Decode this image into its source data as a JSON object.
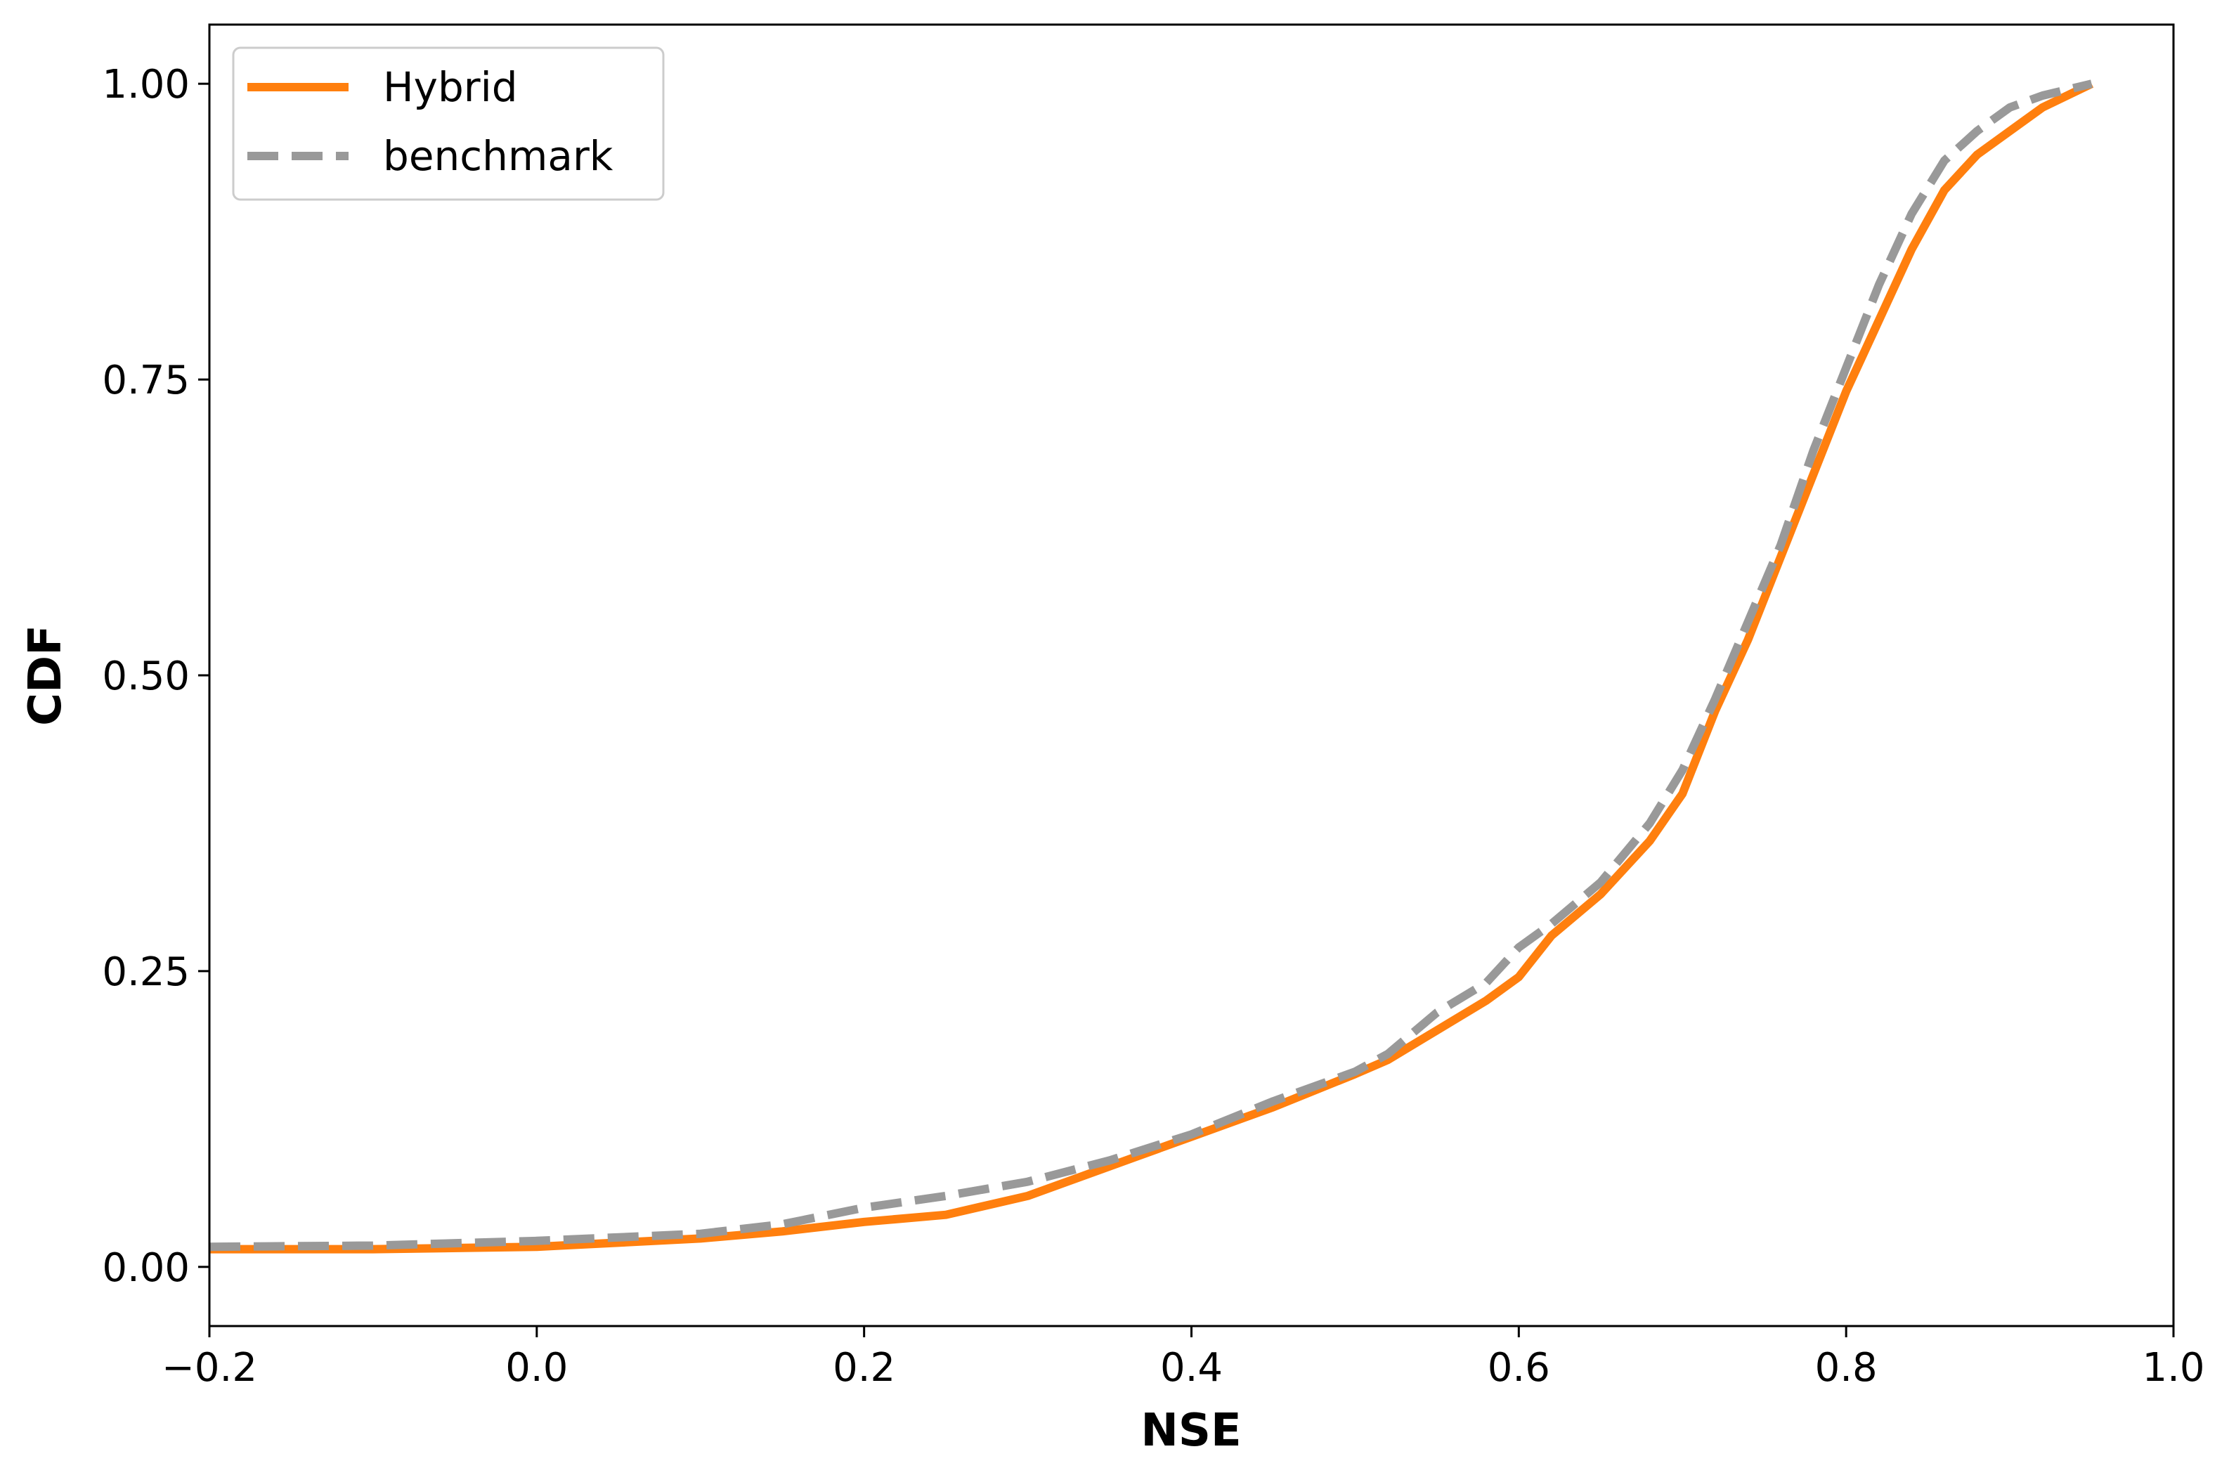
{
  "chart_data": {
    "type": "line",
    "title": "",
    "xlabel": "NSE",
    "ylabel": "CDF",
    "xlim": [
      -0.2,
      1.0
    ],
    "ylim": [
      -0.05,
      1.05
    ],
    "x_ticks": [
      -0.2,
      0.0,
      0.2,
      0.4,
      0.6,
      0.8,
      1.0
    ],
    "x_tick_labels": [
      "−0.2",
      "0.0",
      "0.2",
      "0.4",
      "0.6",
      "0.8",
      "1.0"
    ],
    "y_ticks": [
      0.0,
      0.25,
      0.5,
      0.75,
      1.0
    ],
    "y_tick_labels": [
      "0.00",
      "0.25",
      "0.50",
      "0.75",
      "1.00"
    ],
    "grid": false,
    "legend_position": "top-left",
    "series": [
      {
        "name": "Hybrid",
        "color": "#ff7f0e",
        "style": "solid",
        "points": [
          [
            -0.2,
            0.015
          ],
          [
            -0.1,
            0.015
          ],
          [
            0.0,
            0.017
          ],
          [
            0.1,
            0.024
          ],
          [
            0.15,
            0.03
          ],
          [
            0.2,
            0.038
          ],
          [
            0.25,
            0.044
          ],
          [
            0.3,
            0.06
          ],
          [
            0.35,
            0.085
          ],
          [
            0.4,
            0.11
          ],
          [
            0.45,
            0.135
          ],
          [
            0.5,
            0.163
          ],
          [
            0.52,
            0.175
          ],
          [
            0.55,
            0.2
          ],
          [
            0.58,
            0.225
          ],
          [
            0.6,
            0.245
          ],
          [
            0.62,
            0.28
          ],
          [
            0.65,
            0.315
          ],
          [
            0.68,
            0.36
          ],
          [
            0.7,
            0.4
          ],
          [
            0.72,
            0.47
          ],
          [
            0.74,
            0.53
          ],
          [
            0.76,
            0.6
          ],
          [
            0.78,
            0.67
          ],
          [
            0.8,
            0.74
          ],
          [
            0.82,
            0.8
          ],
          [
            0.84,
            0.86
          ],
          [
            0.86,
            0.91
          ],
          [
            0.88,
            0.94
          ],
          [
            0.9,
            0.96
          ],
          [
            0.92,
            0.98
          ],
          [
            0.95,
            1.0
          ]
        ]
      },
      {
        "name": "benchmark",
        "color": "#999999",
        "style": "dashed",
        "points": [
          [
            -0.2,
            0.017
          ],
          [
            -0.1,
            0.018
          ],
          [
            0.0,
            0.022
          ],
          [
            0.1,
            0.028
          ],
          [
            0.15,
            0.036
          ],
          [
            0.2,
            0.05
          ],
          [
            0.25,
            0.06
          ],
          [
            0.3,
            0.072
          ],
          [
            0.35,
            0.09
          ],
          [
            0.4,
            0.112
          ],
          [
            0.45,
            0.14
          ],
          [
            0.5,
            0.165
          ],
          [
            0.52,
            0.18
          ],
          [
            0.55,
            0.215
          ],
          [
            0.58,
            0.24
          ],
          [
            0.6,
            0.27
          ],
          [
            0.62,
            0.29
          ],
          [
            0.65,
            0.325
          ],
          [
            0.68,
            0.375
          ],
          [
            0.7,
            0.42
          ],
          [
            0.72,
            0.48
          ],
          [
            0.74,
            0.545
          ],
          [
            0.76,
            0.61
          ],
          [
            0.78,
            0.69
          ],
          [
            0.8,
            0.76
          ],
          [
            0.82,
            0.83
          ],
          [
            0.84,
            0.89
          ],
          [
            0.86,
            0.935
          ],
          [
            0.88,
            0.96
          ],
          [
            0.9,
            0.98
          ],
          [
            0.92,
            0.99
          ],
          [
            0.95,
            1.0
          ]
        ]
      }
    ]
  }
}
